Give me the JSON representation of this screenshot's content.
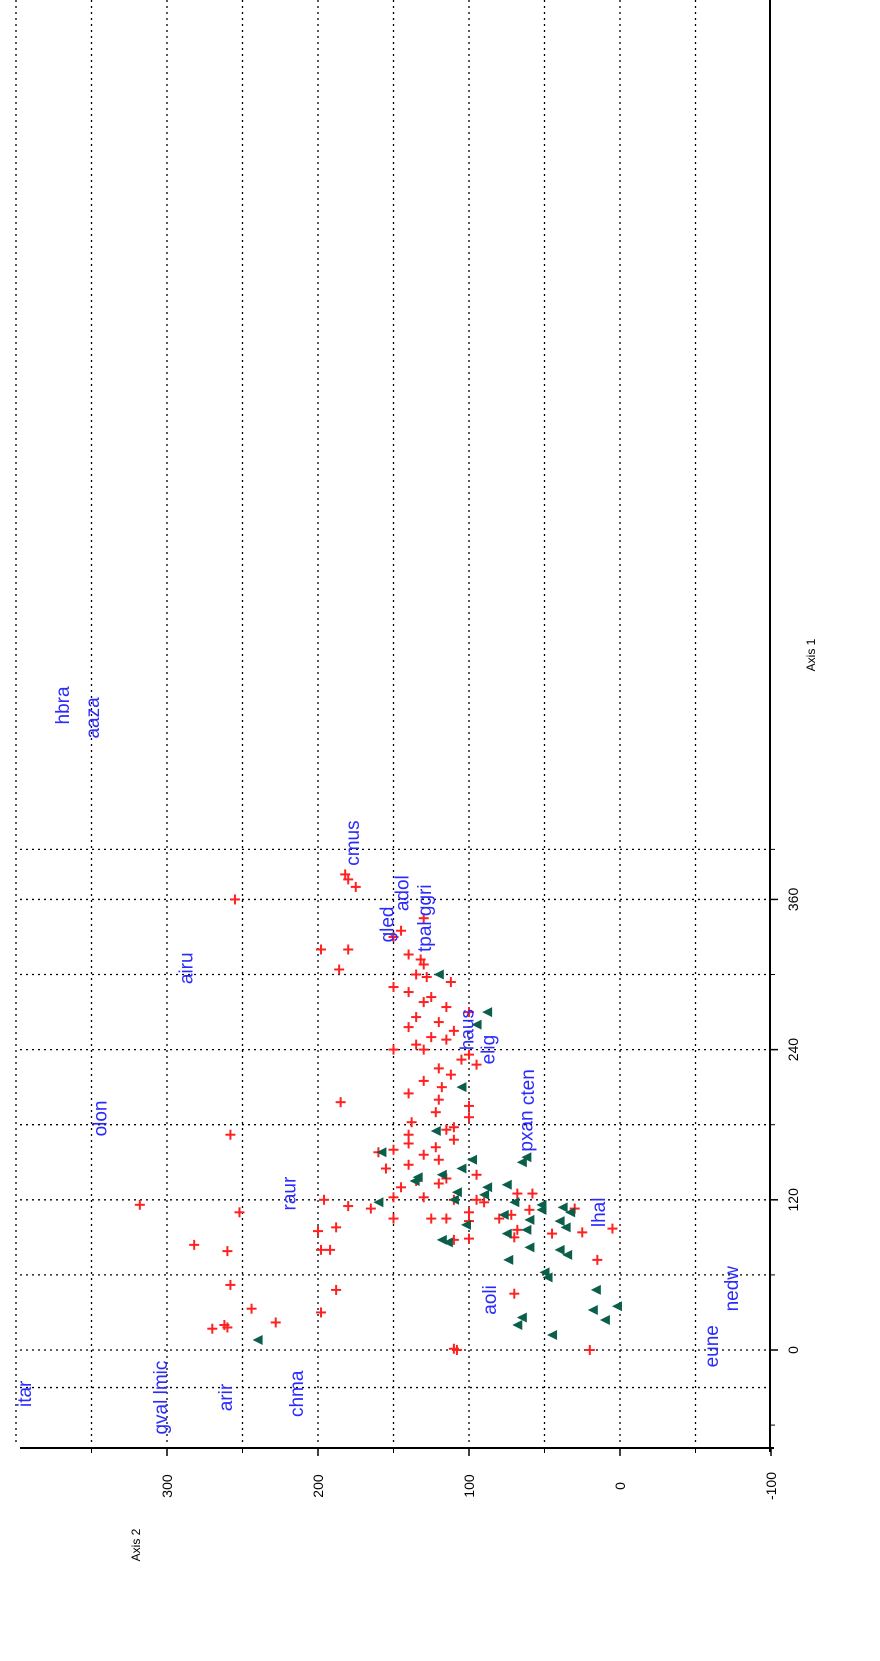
{
  "chart_data": {
    "type": "scatter",
    "orientation": "rotated-90-clockwise",
    "xlabel": "Axis 1",
    "ylabel": "Axis 2",
    "xlim": [
      -50,
      400
    ],
    "ylim": [
      -100,
      400
    ],
    "x_ticks": [
      0,
      120,
      240,
      360
    ],
    "x_tick_labels": [
      "0",
      "120",
      "240",
      "360"
    ],
    "y_ticks": [
      -100,
      0,
      100,
      200,
      300
    ],
    "y_tick_labels": [
      "-100",
      "0",
      "100",
      "200",
      "300"
    ],
    "grid": true,
    "colors": {
      "sample_cross": "#ff2020",
      "sample_triangle": "#0b5e4a",
      "species_label": "#2a2aff",
      "axis": "#000000",
      "grid": "#000000"
    },
    "series": [
      {
        "marker": "plus",
        "color": "#ff2020",
        "points": [
          [
            0,
            108
          ],
          [
            1,
            110
          ],
          [
            0,
            20
          ],
          [
            17,
            270
          ],
          [
            18,
            260
          ],
          [
            20,
            262
          ],
          [
            22,
            228
          ],
          [
            30,
            198
          ],
          [
            33,
            244
          ],
          [
            48,
            188
          ],
          [
            52,
            258
          ],
          [
            45,
            70
          ],
          [
            72,
            15
          ],
          [
            79,
            260
          ],
          [
            80,
            198
          ],
          [
            80,
            192
          ],
          [
            84,
            282
          ],
          [
            88,
            110
          ],
          [
            90,
            70
          ],
          [
            89,
            100
          ],
          [
            93,
            45
          ],
          [
            96,
            68
          ],
          [
            94,
            25
          ],
          [
            97,
            5
          ],
          [
            98,
            188
          ],
          [
            95,
            200
          ],
          [
            105,
            150
          ],
          [
            105,
            125
          ],
          [
            105,
            115
          ],
          [
            103,
            100
          ],
          [
            105,
            80
          ],
          [
            108,
            72
          ],
          [
            110,
            252
          ],
          [
            110,
            100
          ],
          [
            112,
            60
          ],
          [
            113,
            30
          ],
          [
            113,
            165
          ],
          [
            115,
            180
          ],
          [
            116,
            318
          ],
          [
            118,
            90
          ],
          [
            120,
            196
          ],
          [
            120,
            110
          ],
          [
            120,
            95
          ],
          [
            122,
            130
          ],
          [
            122,
            150
          ],
          [
            125,
            68
          ],
          [
            125,
            58
          ],
          [
            130,
            145
          ],
          [
            133,
            120
          ],
          [
            135,
            135
          ],
          [
            137,
            115
          ],
          [
            140,
            95
          ],
          [
            145,
            155
          ],
          [
            148,
            140
          ],
          [
            152,
            120
          ],
          [
            156,
            130
          ],
          [
            158,
            160
          ],
          [
            160,
            150
          ],
          [
            162,
            122
          ],
          [
            165,
            140
          ],
          [
            168,
            110
          ],
          [
            172,
            258
          ],
          [
            172,
            140
          ],
          [
            176,
            115
          ],
          [
            178,
            110
          ],
          [
            182,
            138
          ],
          [
            186,
            100
          ],
          [
            190,
            122
          ],
          [
            195,
            100
          ],
          [
            198,
            185
          ],
          [
            200,
            120
          ],
          [
            205,
            140
          ],
          [
            210,
            118
          ],
          [
            215,
            130
          ],
          [
            220,
            112
          ],
          [
            225,
            120
          ],
          [
            228,
            95
          ],
          [
            232,
            105
          ],
          [
            236,
            100
          ],
          [
            240,
            130
          ],
          [
            240,
            150
          ],
          [
            244,
            135
          ],
          [
            248,
            115
          ],
          [
            250,
            125
          ],
          [
            255,
            110
          ],
          [
            258,
            140
          ],
          [
            262,
            120
          ],
          [
            266,
            135
          ],
          [
            270,
            100
          ],
          [
            274,
            115
          ],
          [
            278,
            130
          ],
          [
            282,
            125
          ],
          [
            286,
            140
          ],
          [
            290,
            150
          ],
          [
            294,
            112
          ],
          [
            298,
            128
          ],
          [
            300,
            135
          ],
          [
            304,
            186
          ],
          [
            308,
            130
          ],
          [
            312,
            132
          ],
          [
            316,
            140
          ],
          [
            320,
            198
          ],
          [
            320,
            180
          ],
          [
            330,
            150
          ],
          [
            335,
            145
          ],
          [
            345,
            130
          ],
          [
            360,
            255
          ],
          [
            370,
            175
          ],
          [
            376,
            180
          ],
          [
            380,
            182
          ]
        ]
      },
      {
        "marker": "triangle",
        "color": "#0b5e4a",
        "points": [
          [
            8,
            240
          ],
          [
            12,
            45
          ],
          [
            20,
            68
          ],
          [
            24,
            10
          ],
          [
            26,
            65
          ],
          [
            32,
            18
          ],
          [
            35,
            2
          ],
          [
            48,
            16
          ],
          [
            58,
            48
          ],
          [
            62,
            50
          ],
          [
            72,
            74
          ],
          [
            76,
            35
          ],
          [
            80,
            40
          ],
          [
            82,
            60
          ],
          [
            86,
            114
          ],
          [
            88,
            118
          ],
          [
            93,
            75
          ],
          [
            96,
            62
          ],
          [
            98,
            36
          ],
          [
            100,
            102
          ],
          [
            103,
            40
          ],
          [
            104,
            60
          ],
          [
            108,
            77
          ],
          [
            110,
            33
          ],
          [
            112,
            52
          ],
          [
            114,
            38
          ],
          [
            116,
            52
          ],
          [
            118,
            160
          ],
          [
            118,
            70
          ],
          [
            120,
            110
          ],
          [
            124,
            90
          ],
          [
            126,
            108
          ],
          [
            130,
            88
          ],
          [
            132,
            75
          ],
          [
            135,
            136
          ],
          [
            138,
            134
          ],
          [
            140,
            118
          ],
          [
            145,
            105
          ],
          [
            150,
            65
          ],
          [
            152,
            98
          ],
          [
            154,
            62
          ],
          [
            158,
            158
          ],
          [
            175,
            122
          ],
          [
            210,
            105
          ],
          [
            260,
            95
          ],
          [
            270,
            88
          ],
          [
            300,
            120
          ]
        ]
      }
    ],
    "annotations": [
      {
        "text": "itar",
        "x": -35,
        "y": 390
      },
      {
        "text": "gval lmic",
        "x": -38,
        "y": 300
      },
      {
        "text": "arir",
        "x": -38,
        "y": 257
      },
      {
        "text": "chma",
        "x": -35,
        "y": 210
      },
      {
        "text": "eune",
        "x": 3,
        "y": -65
      },
      {
        "text": "nedw",
        "x": 49,
        "y": -78
      },
      {
        "text": "aoli",
        "x": 40,
        "y": 82
      },
      {
        "text": "lhal",
        "x": 110,
        "y": 10
      },
      {
        "text": "raur",
        "x": 125,
        "y": 215
      },
      {
        "text": "pxan",
        "x": 175,
        "y": 58
      },
      {
        "text": "olon",
        "x": 185,
        "y": 340
      },
      {
        "text": "cten",
        "x": 210,
        "y": 57
      },
      {
        "text": "elig",
        "x": 240,
        "y": 83
      },
      {
        "text": "haus",
        "x": 256,
        "y": 97
      },
      {
        "text": "airu",
        "x": 305,
        "y": 283
      },
      {
        "text": "gled",
        "x": 340,
        "y": 150
      },
      {
        "text": "tpal ggri",
        "x": 345,
        "y": 125
      },
      {
        "text": "adol",
        "x": 365,
        "y": 140
      },
      {
        "text": "cmus",
        "x": 405,
        "y": 173
      },
      {
        "text": "hbra",
        "x": 515,
        "y": 365
      },
      {
        "text": "aaza",
        "x": 505,
        "y": 345
      }
    ]
  }
}
